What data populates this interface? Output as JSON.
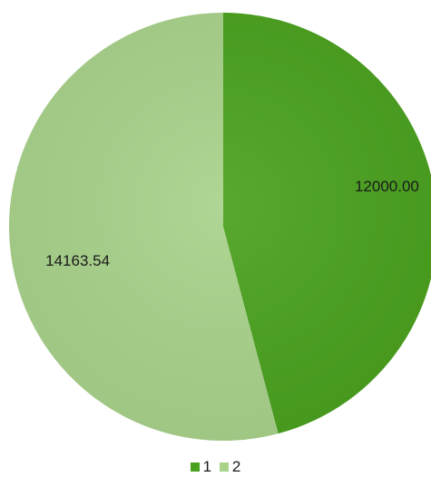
{
  "chart_data": {
    "type": "pie",
    "categories": [
      "1",
      "2"
    ],
    "values": [
      12000.0,
      14163.54
    ],
    "data_labels": [
      "12000.00",
      "14163.54"
    ],
    "colors": [
      "#4aa11e",
      "#a9d28b"
    ],
    "start_angle_deg": 0,
    "direction": "clockwise",
    "legend_position": "bottom",
    "legend": [
      "1",
      "2"
    ]
  }
}
